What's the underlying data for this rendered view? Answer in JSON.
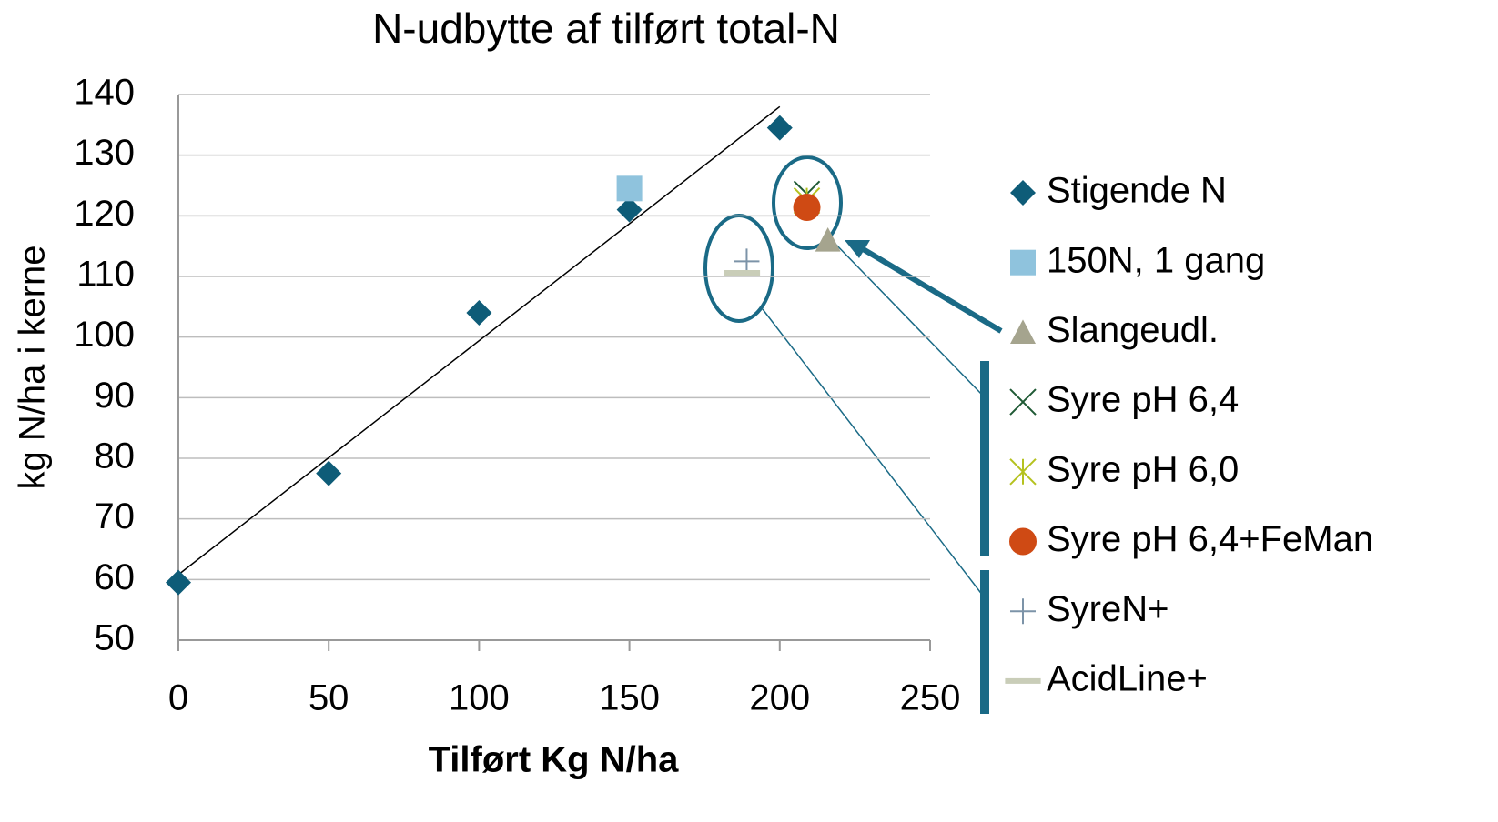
{
  "chart_data": {
    "type": "scatter",
    "title": "N-udbytte af tilført total-N",
    "xlabel": "Tilført Kg N/ha",
    "ylabel": "kg N/ha i kerne",
    "xlim": [
      0,
      250
    ],
    "ylim": [
      50,
      140
    ],
    "xticks": [
      0,
      50,
      100,
      150,
      200,
      250
    ],
    "yticks": [
      50,
      60,
      70,
      80,
      90,
      100,
      110,
      120,
      130,
      140
    ],
    "grid": true,
    "legend": "right",
    "series": [
      {
        "name": "Stigende N",
        "color": "#0e5c78",
        "marker": "diamond",
        "x": [
          0,
          50,
          100,
          150,
          200
        ],
        "values": [
          59.5,
          77.5,
          104,
          121,
          134.5
        ]
      },
      {
        "name": "150N, 1 gang",
        "color": "#8fc3dd",
        "marker": "square",
        "x": [
          150
        ],
        "values": [
          124.5
        ]
      },
      {
        "name": "Slangeudl.",
        "color": "#a5a48e",
        "marker": "triangle",
        "x": [
          216
        ],
        "values": [
          116
        ]
      },
      {
        "name": "Syre pH 6,4",
        "color": "#1f5a35",
        "marker": "x",
        "x": [
          209
        ],
        "values": [
          123.6
        ]
      },
      {
        "name": "Syre pH 6,0",
        "color": "#b5c21f",
        "marker": "star",
        "x": [
          209
        ],
        "values": [
          122.5
        ]
      },
      {
        "name": "Syre pH 6,4+FeMan",
        "color": "#cf4a14",
        "marker": "circle",
        "x": [
          209
        ],
        "values": [
          121.4
        ]
      },
      {
        "name": "SyreN+",
        "color": "#7c93a8",
        "marker": "plus",
        "x": [
          189
        ],
        "values": [
          112.5
        ]
      },
      {
        "name": "AcidLine+",
        "color": "#c9cdb8",
        "marker": "dash",
        "x": [
          187.5
        ],
        "values": [
          110.6
        ]
      }
    ],
    "trendline": {
      "color": "#000000",
      "x": [
        0,
        200
      ],
      "values": [
        60.8,
        138
      ]
    }
  }
}
